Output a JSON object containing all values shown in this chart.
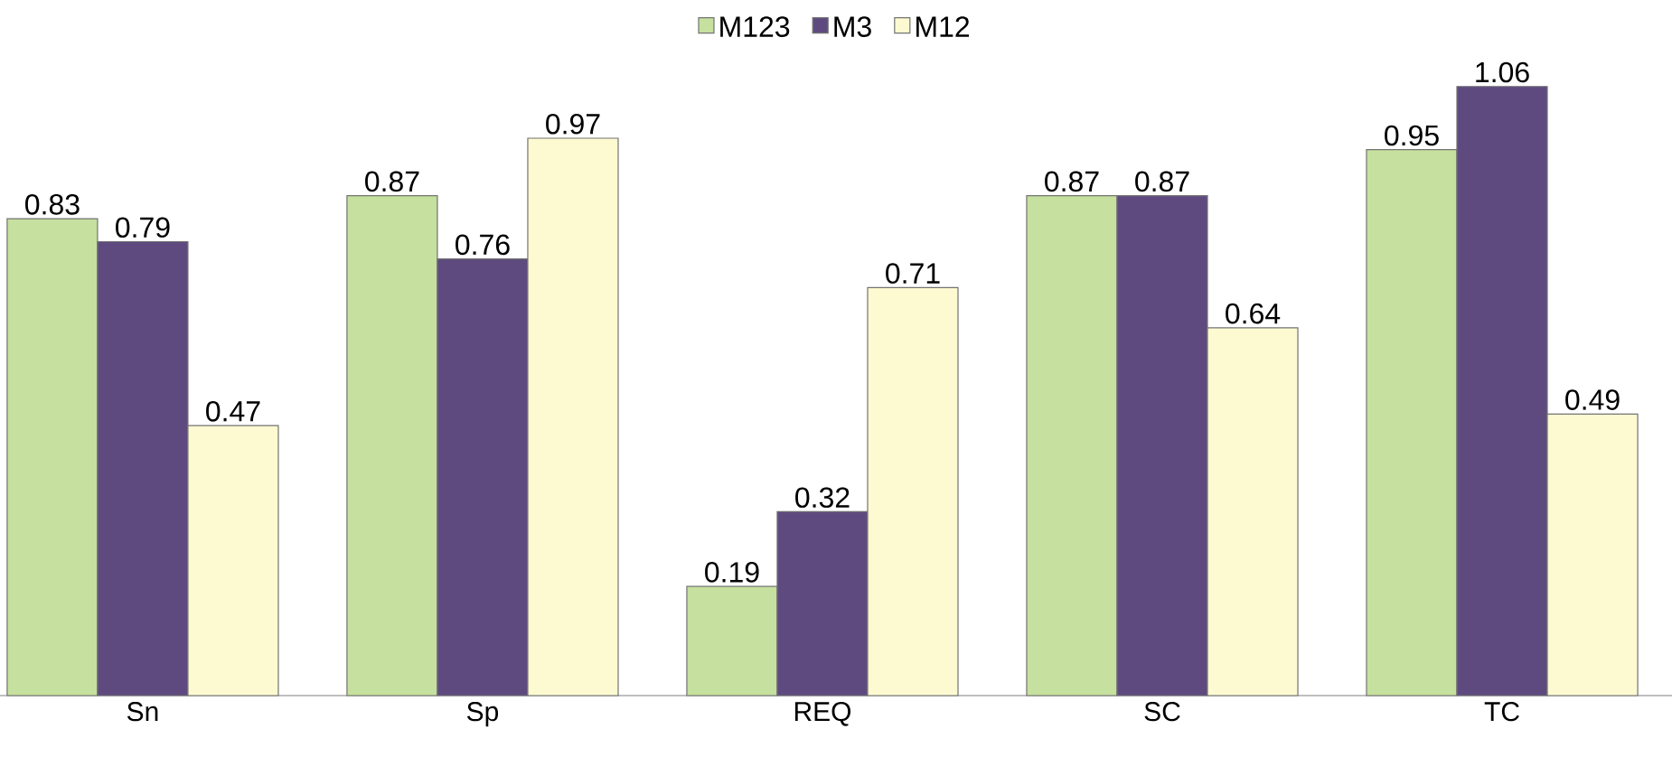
{
  "chart_data": {
    "type": "bar",
    "categories": [
      "Sn",
      "Sp",
      "REQ",
      "SC",
      "TC"
    ],
    "series": [
      {
        "name": "M123",
        "color": "#c6e09f",
        "values": [
          0.83,
          0.87,
          0.19,
          0.87,
          0.95
        ]
      },
      {
        "name": "M3",
        "color": "#5f4a80",
        "values": [
          0.79,
          0.76,
          0.32,
          0.87,
          1.06
        ]
      },
      {
        "name": "M12",
        "color": "#fdfad2",
        "values": [
          0.47,
          0.97,
          0.71,
          0.64,
          0.49
        ]
      }
    ],
    "data_labels": true,
    "legend": "top"
  }
}
